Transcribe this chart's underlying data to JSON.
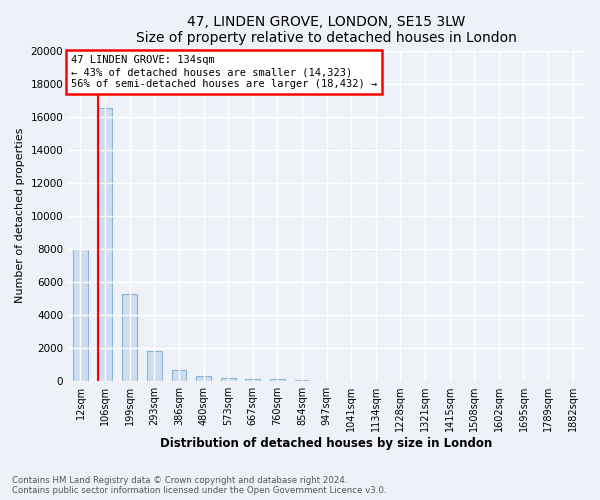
{
  "title": "47, LINDEN GROVE, LONDON, SE15 3LW",
  "subtitle": "Size of property relative to detached houses in London",
  "xlabel": "Distribution of detached houses by size in London",
  "ylabel": "Number of detached properties",
  "categories": [
    "12sqm",
    "106sqm",
    "199sqm",
    "293sqm",
    "386sqm",
    "480sqm",
    "573sqm",
    "667sqm",
    "760sqm",
    "854sqm",
    "947sqm",
    "1041sqm",
    "1134sqm",
    "1228sqm",
    "1321sqm",
    "1415sqm",
    "1508sqm",
    "1602sqm",
    "1695sqm",
    "1789sqm",
    "1882sqm"
  ],
  "values": [
    8000,
    16500,
    5250,
    1800,
    700,
    290,
    170,
    130,
    110,
    60,
    0,
    0,
    0,
    0,
    0,
    0,
    0,
    0,
    0,
    0,
    0
  ],
  "bar_color": "#ccddf2",
  "bar_edge_color": "#8ab4d8",
  "property_label": "47 LINDEN GROVE: 134sqm",
  "annotation_line1": "← 43% of detached houses are smaller (14,323)",
  "annotation_line2": "56% of semi-detached houses are larger (18,432) →",
  "ylim": [
    0,
    20000
  ],
  "yticks": [
    0,
    2000,
    4000,
    6000,
    8000,
    10000,
    12000,
    14000,
    16000,
    18000,
    20000
  ],
  "footnote1": "Contains HM Land Registry data © Crown copyright and database right 2024.",
  "footnote2": "Contains public sector information licensed under the Open Government Licence v3.0.",
  "background_color": "#eef2f8",
  "grid_color": "#ffffff",
  "bar_width": 0.6
}
